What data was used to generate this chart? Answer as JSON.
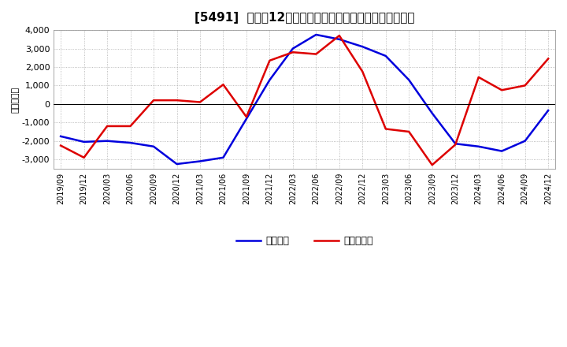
{
  "title": "[5491]  利益だ12か月移動合計の対前年同期増減額の推移",
  "ylabel": "（百万円）",
  "background_color": "#ffffff",
  "plot_bg_color": "#ffffff",
  "grid_color": "#aaaaaa",
  "x_labels": [
    "2019/09",
    "2019/12",
    "2020/03",
    "2020/06",
    "2020/09",
    "2020/12",
    "2021/03",
    "2021/06",
    "2021/09",
    "2021/12",
    "2022/03",
    "2022/06",
    "2022/09",
    "2022/12",
    "2023/03",
    "2023/06",
    "2023/09",
    "2023/12",
    "2024/03",
    "2024/06",
    "2024/09",
    "2024/12"
  ],
  "keijo_rieki": [
    -1750,
    -2050,
    -2000,
    -2100,
    -2300,
    -3250,
    -3100,
    -2900,
    -800,
    1300,
    3000,
    3750,
    3500,
    3100,
    2600,
    1300,
    -500,
    -2150,
    -2300,
    -2550,
    -2000,
    -350
  ],
  "touki_junseki": [
    -2250,
    -2900,
    -1200,
    -1200,
    200,
    200,
    100,
    1050,
    -700,
    2350,
    2800,
    2700,
    3700,
    1750,
    -1350,
    -1500,
    -3300,
    -2200,
    1450,
    750,
    1000,
    2450
  ],
  "keijo_color": "#0000dd",
  "touki_color": "#dd0000",
  "ylim": [
    -3500,
    4000
  ],
  "yticks": [
    -3000,
    -2000,
    -1000,
    0,
    1000,
    2000,
    3000,
    4000
  ],
  "legend_keijo": "経常利益",
  "legend_touki": "当期純利益",
  "line_width": 1.8
}
